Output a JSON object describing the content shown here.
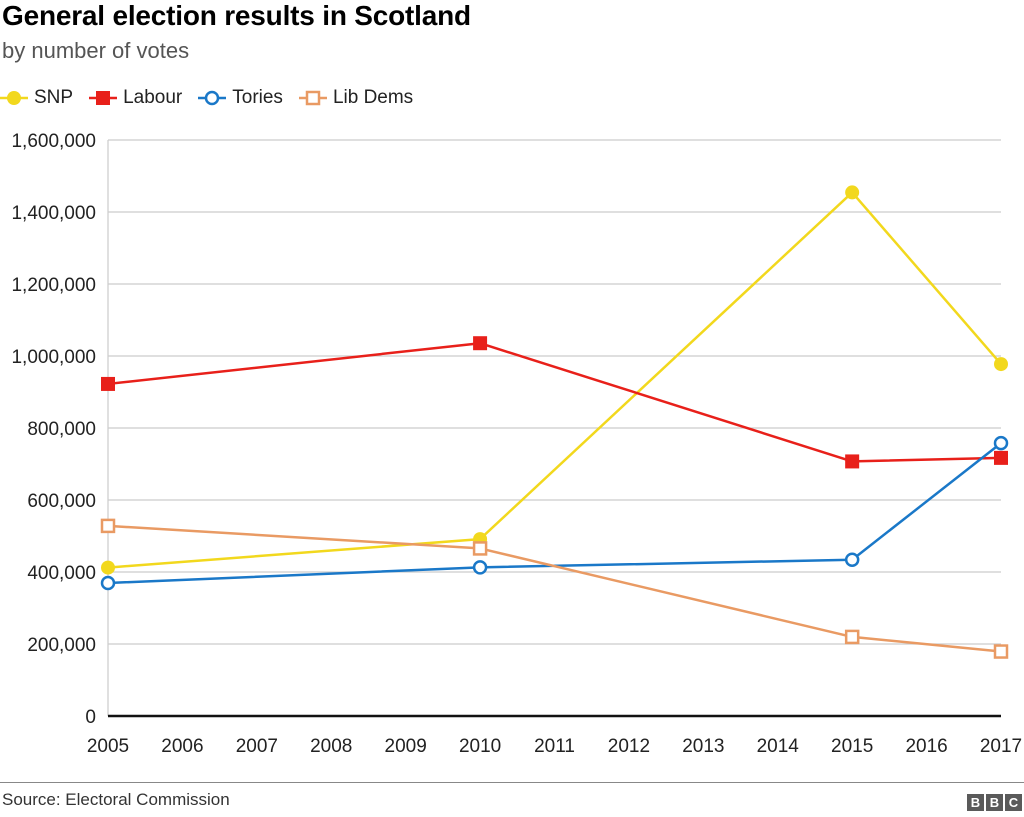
{
  "chart_data": {
    "type": "line",
    "title": "General election results in Scotland",
    "subtitle": "by number of votes",
    "xlabel": "",
    "ylabel": "",
    "x_ticks": [
      "2005",
      "2006",
      "2007",
      "2008",
      "2009",
      "2010",
      "2011",
      "2012",
      "2013",
      "2014",
      "2015",
      "2016",
      "2017"
    ],
    "xlim": [
      2005,
      2017
    ],
    "ylim": [
      0,
      1600000
    ],
    "y_ticks": [
      0,
      200000,
      400000,
      600000,
      800000,
      1000000,
      1200000,
      1400000,
      1600000
    ],
    "y_tick_labels": [
      "0",
      "200,000",
      "400,000",
      "600,000",
      "800,000",
      "1,000,000",
      "1,200,000",
      "1,400,000",
      "1,600,000"
    ],
    "grid": true,
    "legend_position": "top-left",
    "x": [
      2005,
      2010,
      2015,
      2017
    ],
    "series": [
      {
        "name": "SNP",
        "color": "#f2d81d",
        "marker": "filled-circle",
        "values": [
          412267,
          491386,
          1454436,
          977569
        ]
      },
      {
        "name": "Labour",
        "color": "#e8201a",
        "marker": "filled-square",
        "values": [
          922402,
          1035528,
          707147,
          717007
        ]
      },
      {
        "name": "Tories",
        "color": "#1a78c8",
        "marker": "hollow-circle",
        "values": [
          369388,
          412855,
          434097,
          757949
        ]
      },
      {
        "name": "Lib Dems",
        "color": "#e99a63",
        "marker": "hollow-square",
        "values": [
          528076,
          465471,
          219675,
          179061
        ]
      }
    ]
  },
  "footer": {
    "source": "Source: Electoral Commission",
    "logo_letters": [
      "B",
      "B",
      "C"
    ]
  }
}
